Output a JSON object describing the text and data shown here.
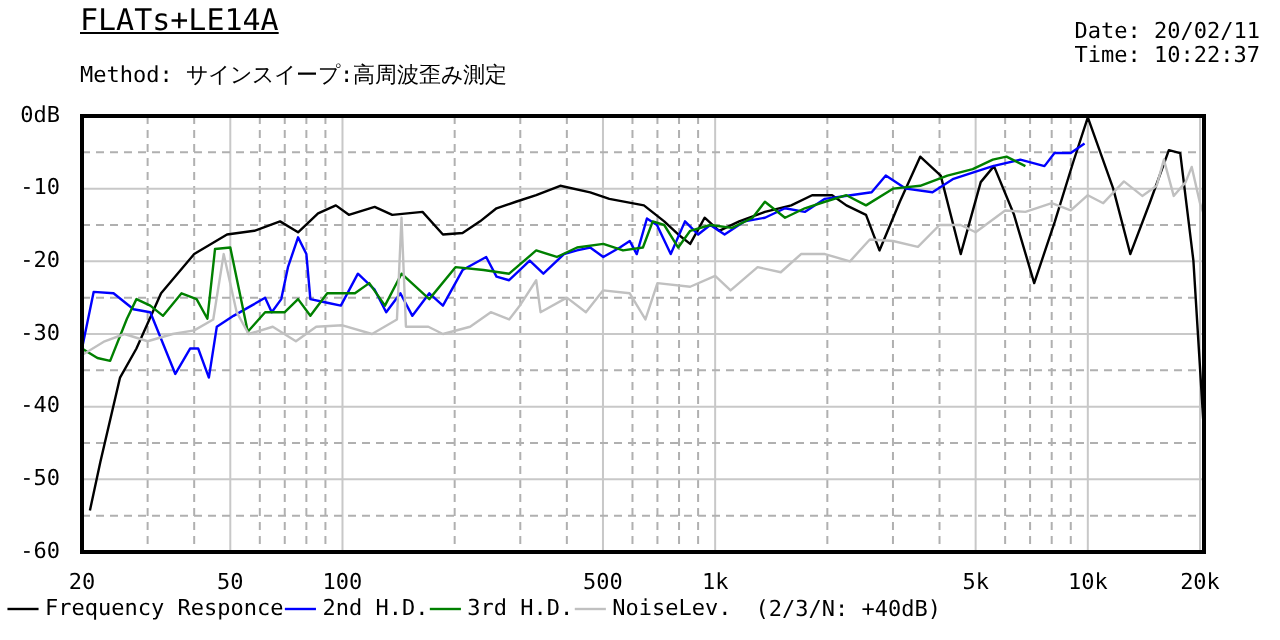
{
  "chart_data": {
    "type": "line",
    "title": "FLATs+LE14A",
    "subtitle": "Method: サインスイープ:高周波歪み測定",
    "annotations": [
      "Date: 20/02/11",
      "Time: 10:22:37",
      "(2/3/N: +40dB)"
    ],
    "log": "x",
    "grid": true,
    "legend": "bottom",
    "marker": "none",
    "xlim": [
      20,
      20500
    ],
    "xticks": [
      20,
      {
        "value": 30,
        "label": null
      },
      {
        "value": 40,
        "label": null
      },
      50,
      {
        "value": 60,
        "label": null
      },
      {
        "value": 70,
        "label": null
      },
      {
        "value": 80,
        "label": null
      },
      {
        "value": 90,
        "label": null
      },
      100,
      {
        "value": 200,
        "label": null
      },
      {
        "value": 300,
        "label": null
      },
      {
        "value": 400,
        "label": null
      },
      500,
      {
        "value": 600,
        "label": null
      },
      {
        "value": 700,
        "label": null
      },
      {
        "value": 800,
        "label": null
      },
      {
        "value": 900,
        "label": null
      },
      {
        "value": 1000,
        "label": "1k"
      },
      {
        "value": 2000,
        "label": null
      },
      {
        "value": 3000,
        "label": null
      },
      {
        "value": 4000,
        "label": null
      },
      {
        "value": 5000,
        "label": "5k"
      },
      {
        "value": 6000,
        "label": null
      },
      {
        "value": 7000,
        "label": null
      },
      {
        "value": 8000,
        "label": null
      },
      {
        "value": 9000,
        "label": null
      },
      {
        "value": 10000,
        "label": "10k"
      },
      {
        "value": 20000,
        "label": "20k"
      }
    ],
    "ylim": [
      -60,
      0
    ],
    "yticks": [
      -60,
      {
        "value": -55,
        "label": null
      },
      -50,
      {
        "value": -45,
        "label": null
      },
      -40,
      {
        "value": -35,
        "label": null
      },
      -30,
      {
        "value": -25,
        "label": null
      },
      -20,
      {
        "value": -15,
        "label": null
      },
      -10,
      {
        "value": -5,
        "label": null
      },
      {
        "value": 0,
        "label": "0dB"
      }
    ],
    "series": [
      {
        "name": "Frequency Responce",
        "color": "#000000",
        "x": [
          21,
          22.4,
          25.3,
          28,
          32.6,
          40,
          49,
          58,
          68,
          76,
          86,
          96,
          104,
          122,
          136,
          164,
          186,
          210,
          234,
          259,
          292,
          331,
          384,
          462,
          520,
          644,
          730,
          796,
          857,
          937,
          1025,
          1160,
          1360,
          1600,
          1820,
          2060,
          2250,
          2540,
          2760,
          3130,
          3550,
          4030,
          4560,
          5160,
          5600,
          6340,
          7180,
          8160,
          9130,
          10000,
          11700,
          13000,
          14700,
          16500,
          17700,
          19200,
          20400
        ],
        "values": [
          -54.3,
          -47.6,
          -36,
          -32,
          -24.4,
          -19,
          -16.3,
          -15.8,
          -14.5,
          -16,
          -13.4,
          -12.3,
          -13.6,
          -12.5,
          -13.6,
          -13.2,
          -16.3,
          -16.1,
          -14.5,
          -12.7,
          -11.8,
          -10.9,
          -9.6,
          -10.5,
          -11.4,
          -12.3,
          -14.5,
          -16.3,
          -17.6,
          -14,
          -15.8,
          -14.5,
          -13.2,
          -12.3,
          -10.9,
          -10.9,
          -12.3,
          -13.6,
          -18.5,
          -11.8,
          -5.6,
          -8.2,
          -19,
          -9.1,
          -6.9,
          -13.6,
          -23,
          -14.5,
          -6.4,
          -0.2,
          -10,
          -19,
          -11.8,
          -4.7,
          -5.1,
          -19.9,
          -41.8
        ]
      },
      {
        "name": "2nd H.D.",
        "color": "#0000ff",
        "x": [
          20,
          21.5,
          24.3,
          27.5,
          30.5,
          35.6,
          39,
          41,
          43.8,
          46,
          51,
          57,
          62,
          64.6,
          68.5,
          71.4,
          76,
          80,
          82,
          91,
          99,
          110,
          122,
          131,
          143,
          154,
          171,
          186,
          210,
          243,
          259,
          280,
          318,
          346,
          393,
          426,
          462,
          501,
          555,
          590,
          616,
          656,
          698,
          760,
          830,
          900,
          970,
          1060,
          1200,
          1360,
          1540,
          1740,
          1970,
          2310,
          2630,
          2870,
          3250,
          3830,
          4340,
          4910,
          5560,
          6590,
          7650,
          8140,
          9000,
          9800
        ],
        "values": [
          -32,
          -24.2,
          -24.4,
          -26.6,
          -27,
          -35.5,
          -32,
          -32,
          -36,
          -29,
          -27.5,
          -26.1,
          -25,
          -27,
          -25.2,
          -20.8,
          -16.7,
          -19,
          -25.2,
          -25.7,
          -26.1,
          -21.7,
          -23.9,
          -27,
          -24.4,
          -27.5,
          -24.4,
          -26.1,
          -21.2,
          -19.4,
          -22.1,
          -22.6,
          -19.9,
          -21.7,
          -19,
          -18.5,
          -18.1,
          -19.4,
          -18.1,
          -17.2,
          -19,
          -14.1,
          -15,
          -19,
          -14.5,
          -16.3,
          -15,
          -16.3,
          -14.5,
          -14,
          -12.7,
          -13.2,
          -11.4,
          -10.9,
          -10.5,
          -8.2,
          -10,
          -10.5,
          -8.7,
          -7.8,
          -6.9,
          -6,
          -6.9,
          -5.1,
          -5.1,
          -3.8
        ]
      },
      {
        "name": "3rd H.D.",
        "color": "#008000",
        "x": [
          20,
          22,
          23.8,
          26.4,
          28,
          30.5,
          33,
          37,
          40.6,
          43.4,
          45.5,
          50,
          55.7,
          62,
          70,
          76,
          82,
          91,
          108,
          118,
          130,
          144,
          171,
          201,
          239,
          280,
          331,
          376,
          426,
          501,
          566,
          640,
          680,
          730,
          796,
          857,
          970,
          1110,
          1260,
          1360,
          1540,
          1740,
          1970,
          2250,
          2540,
          3000,
          3550,
          4200,
          4910,
          5560,
          6050,
          6800
        ],
        "values": [
          -32,
          -33.3,
          -33.7,
          -27.9,
          -25.2,
          -26.1,
          -27.5,
          -24.4,
          -25.2,
          -27.9,
          -18.3,
          -18.1,
          -29.7,
          -27,
          -27,
          -25.2,
          -27.5,
          -24.4,
          -24.4,
          -23,
          -26.1,
          -21.7,
          -25.2,
          -20.8,
          -21.2,
          -21.7,
          -18.5,
          -19.4,
          -18.1,
          -17.6,
          -18.5,
          -18.1,
          -14.5,
          -15,
          -18.1,
          -15.8,
          -15,
          -15.4,
          -14,
          -11.8,
          -14,
          -12.7,
          -11.8,
          -10.9,
          -12.3,
          -10,
          -9.6,
          -8.2,
          -7.3,
          -6,
          -5.6,
          -6.9
        ]
      },
      {
        "name": "NoiseLev.",
        "color": "#c0c0c0",
        "x": [
          20,
          23,
          26,
          30,
          35,
          40,
          45,
          48,
          52,
          56,
          65,
          75,
          85,
          100,
          120,
          140,
          144,
          148,
          170,
          186,
          220,
          250,
          280,
          300,
          331,
          340,
          400,
          450,
          500,
          590,
          650,
          700,
          857,
          1000,
          1100,
          1300,
          1500,
          1700,
          1970,
          2300,
          2600,
          3000,
          3500,
          4000,
          4560,
          5000,
          6000,
          6800,
          8000,
          9000,
          10000,
          11000,
          12500,
          14000,
          15300,
          16000,
          17000,
          18300,
          19000,
          20000,
          20500
        ],
        "values": [
          -32.9,
          -31,
          -30,
          -31,
          -30,
          -29.5,
          -28,
          -19,
          -27,
          -30,
          -29,
          -31,
          -29,
          -28.8,
          -30,
          -28,
          -14,
          -29,
          -29,
          -30,
          -29,
          -27,
          -28,
          -26,
          -22.6,
          -27,
          -25,
          -27,
          -24,
          -24.4,
          -28,
          -23,
          -23.5,
          -22,
          -24,
          -20.8,
          -21.5,
          -19,
          -19,
          -20,
          -17,
          -17.2,
          -18,
          -15,
          -15,
          -16,
          -13,
          -13.2,
          -12,
          -13,
          -10.9,
          -12,
          -9,
          -11,
          -9.6,
          -6,
          -11,
          -9.1,
          -7,
          -12,
          -13.6
        ]
      }
    ]
  }
}
